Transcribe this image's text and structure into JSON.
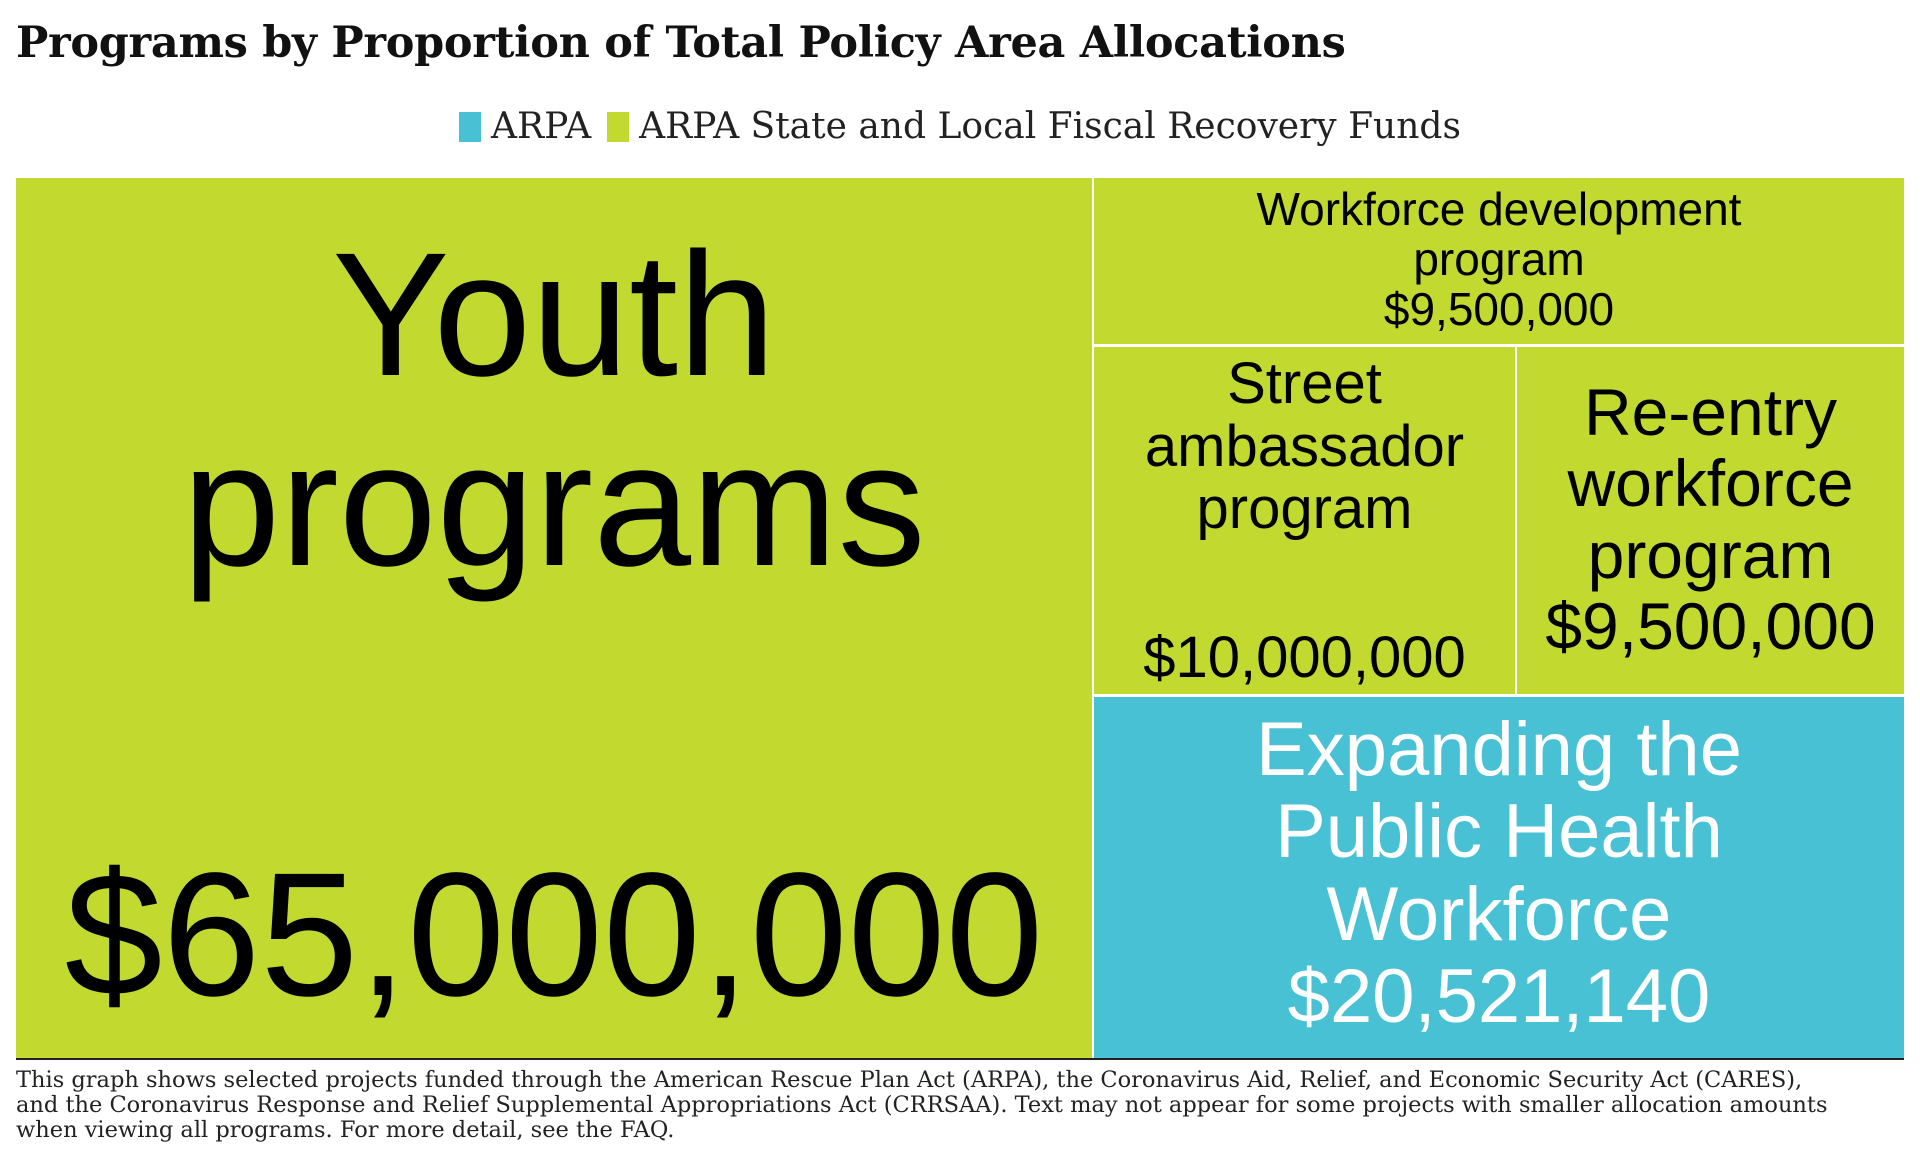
{
  "chart_data": {
    "type": "treemap",
    "title": "Programs by Proportion of Total Policy Area Allocations",
    "legend": [
      {
        "name": "ARPA",
        "color": "#48C1D5"
      },
      {
        "name": "ARPA State and Local Fiscal Recovery Funds",
        "color": "#C2D92F"
      }
    ],
    "items": [
      {
        "label": "Youth programs",
        "value_label": "$65,000,000",
        "value": 65000000,
        "group": "ARPA State and Local Fiscal Recovery Funds"
      },
      {
        "label": "Workforce development program",
        "value_label": "$9,500,000",
        "value": 9500000,
        "group": "ARPA State and Local Fiscal Recovery Funds"
      },
      {
        "label": "Street ambassador program",
        "value_label": "$10,000,000",
        "value": 10000000,
        "group": "ARPA State and Local Fiscal Recovery Funds"
      },
      {
        "label": "Re-entry workforce program",
        "value_label": "$9,500,000",
        "value": 9500000,
        "group": "ARPA State and Local Fiscal Recovery Funds"
      },
      {
        "label": "Expanding the Public Health Workforce",
        "value_label": "$20,521,140",
        "value": 20521140,
        "group": "ARPA"
      }
    ]
  },
  "footnote": "This graph shows selected projects funded through the American Rescue Plan Act (ARPA), the Coronavirus Aid, Relief, and Economic Security Act (CARES),\nand the Coronavirus Response and Relief Supplemental Appropriations Act (CRRSAA). Text may not appear for some projects with smaller allocation amounts\n when viewing all programs. For more detail, see the FAQ."
}
